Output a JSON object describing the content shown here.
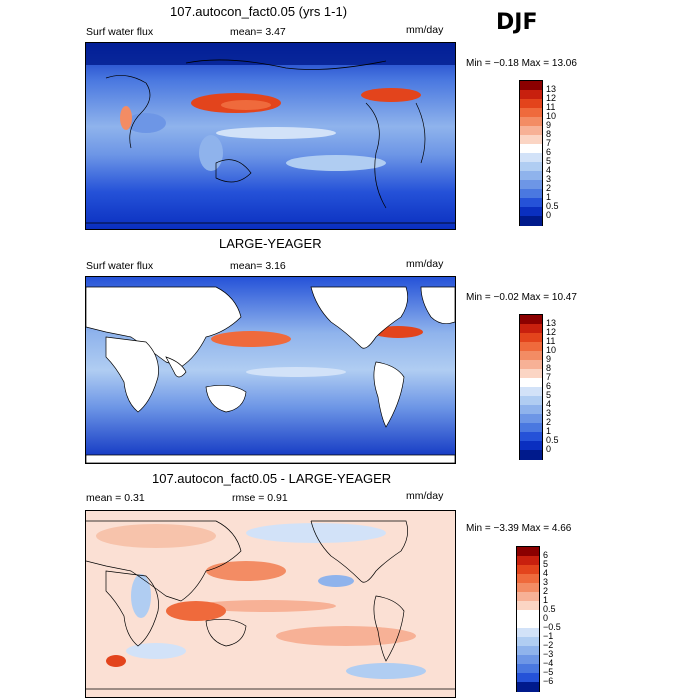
{
  "season": "DJF",
  "panels": [
    {
      "id": "top",
      "title": "107.autocon_fact0.05 (yrs 1-1)",
      "variable": "Surf water flux",
      "stat1": "mean=   3.47",
      "stat2": "",
      "units": "mm/day",
      "minmax": "Min =  −0.18 Max =  13.06",
      "colorbar": {
        "labels": [
          "13",
          "12",
          "11",
          "10",
          "9",
          "8",
          "7",
          "6",
          "5",
          "4",
          "3",
          "2",
          "1",
          "0.5",
          "0"
        ],
        "colors": [
          "#8b0000",
          "#c8200e",
          "#e3441c",
          "#ef6a3c",
          "#f38c64",
          "#f7b196",
          "#fbd5c4",
          "#ffffff",
          "#d2e2f8",
          "#b0cdf2",
          "#8fb3ec",
          "#6d96e6",
          "#4a78e0",
          "#2552d8",
          "#0a2fc0",
          "#001a8c"
        ]
      }
    },
    {
      "id": "middle",
      "title": "LARGE-YEAGER",
      "variable": "Surf water flux",
      "stat1": "mean=   3.16",
      "stat2": "",
      "units": "mm/day",
      "minmax": "Min =  −0.02 Max =  10.47",
      "colorbar": {
        "labels": [
          "13",
          "12",
          "11",
          "10",
          "9",
          "8",
          "7",
          "6",
          "5",
          "4",
          "3",
          "2",
          "1",
          "0.5",
          "0"
        ],
        "colors": [
          "#8b0000",
          "#c8200e",
          "#e3441c",
          "#ef6a3c",
          "#f38c64",
          "#f7b196",
          "#fbd5c4",
          "#ffffff",
          "#d2e2f8",
          "#b0cdf2",
          "#8fb3ec",
          "#6d96e6",
          "#4a78e0",
          "#2552d8",
          "#0a2fc0",
          "#001a8c"
        ]
      }
    },
    {
      "id": "bottom",
      "title": "107.autocon_fact0.05 - LARGE-YEAGER",
      "variable": "",
      "stat1": "mean =    0.31",
      "stat2": "rmse =    0.91",
      "units": "mm/day",
      "minmax": "Min =  −3.39 Max =   4.66",
      "colorbar": {
        "labels": [
          "6",
          "5",
          "4",
          "3",
          "2",
          "1",
          "0.5",
          "0",
          "−0.5",
          "−1",
          "−2",
          "−3",
          "−4",
          "−5",
          "−6"
        ],
        "colors": [
          "#8b0000",
          "#c8200e",
          "#e3441c",
          "#ef6a3c",
          "#f38c64",
          "#f7b196",
          "#fbd5c4",
          "#ffffff",
          "#ffffff",
          "#d2e2f8",
          "#b0cdf2",
          "#8fb3ec",
          "#6d96e6",
          "#4a78e0",
          "#2552d8",
          "#001a8c"
        ]
      }
    }
  ]
}
